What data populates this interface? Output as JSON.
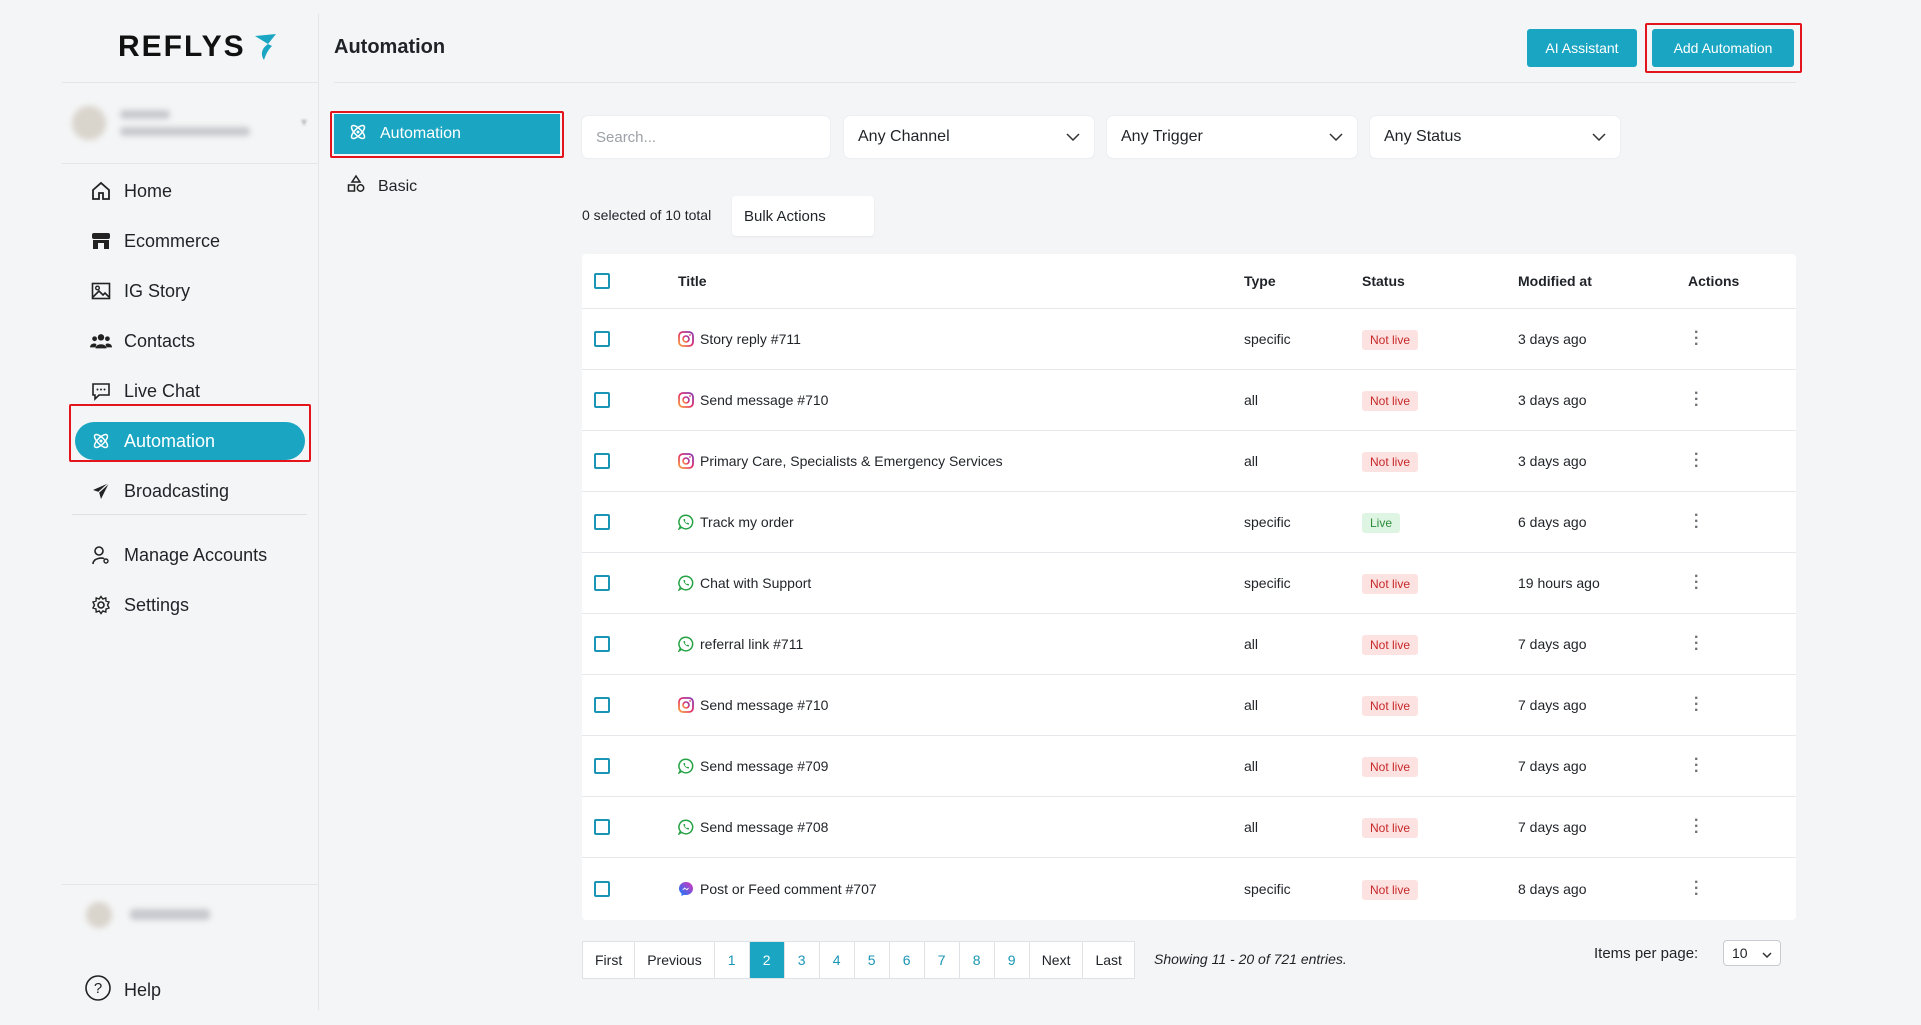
{
  "brand": {
    "name": "REFLYS"
  },
  "sidebar": {
    "items": [
      {
        "label": "Home"
      },
      {
        "label": "Ecommerce"
      },
      {
        "label": "IG Story"
      },
      {
        "label": "Contacts"
      },
      {
        "label": "Live Chat"
      },
      {
        "label": "Automation"
      },
      {
        "label": "Broadcasting"
      },
      {
        "label": "Manage Accounts"
      },
      {
        "label": "Settings"
      }
    ],
    "help_label": "Help"
  },
  "header": {
    "title": "Automation",
    "ai_button": "AI Assistant",
    "add_button": "Add Automation"
  },
  "subnav": {
    "items": [
      {
        "label": "Automation"
      },
      {
        "label": "Basic"
      }
    ]
  },
  "filters": {
    "search_placeholder": "Search...",
    "channel": "Any Channel",
    "trigger": "Any Trigger",
    "status": "Any Status"
  },
  "selection": {
    "text": "0 selected of 10 total",
    "bulk_label": "Bulk Actions"
  },
  "table": {
    "headers": {
      "title": "Title",
      "type": "Type",
      "status": "Status",
      "modified": "Modified at",
      "actions": "Actions"
    },
    "rows": [
      {
        "channel": "instagram",
        "title": "Story reply #711",
        "type": "specific",
        "status": "Not live",
        "modified": "3 days ago"
      },
      {
        "channel": "instagram",
        "title": "Send message #710",
        "type": "all",
        "status": "Not live",
        "modified": "3 days ago"
      },
      {
        "channel": "instagram",
        "title": "Primary Care, Specialists & Emergency Services",
        "type": "all",
        "status": "Not live",
        "modified": "3 days ago"
      },
      {
        "channel": "whatsapp",
        "title": "Track my order",
        "type": "specific",
        "status": "Live",
        "modified": "6 days ago"
      },
      {
        "channel": "whatsapp",
        "title": "Chat with Support",
        "type": "specific",
        "status": "Not live",
        "modified": "19 hours ago"
      },
      {
        "channel": "whatsapp",
        "title": "referral link #711",
        "type": "all",
        "status": "Not live",
        "modified": "7 days ago"
      },
      {
        "channel": "instagram",
        "title": "Send message #710",
        "type": "all",
        "status": "Not live",
        "modified": "7 days ago"
      },
      {
        "channel": "whatsapp",
        "title": "Send message #709",
        "type": "all",
        "status": "Not live",
        "modified": "7 days ago"
      },
      {
        "channel": "whatsapp",
        "title": "Send message #708",
        "type": "all",
        "status": "Not live",
        "modified": "7 days ago"
      },
      {
        "channel": "messenger",
        "title": "Post or Feed comment #707",
        "type": "specific",
        "status": "Not live",
        "modified": "8 days ago"
      }
    ]
  },
  "pagination": {
    "first": "First",
    "previous": "Previous",
    "pages": [
      "1",
      "2",
      "3",
      "4",
      "5",
      "6",
      "7",
      "8",
      "9"
    ],
    "current": "2",
    "next": "Next",
    "last": "Last",
    "showing": "Showing 11 - 20 of 721 entries.",
    "items_per_page_label": "Items per page:",
    "items_per_page": "10"
  },
  "colors": {
    "accent": "#1aa6c2",
    "highlight": "#e3141b",
    "not_live_bg": "#fde2e2",
    "live_bg": "#dff5e3"
  }
}
